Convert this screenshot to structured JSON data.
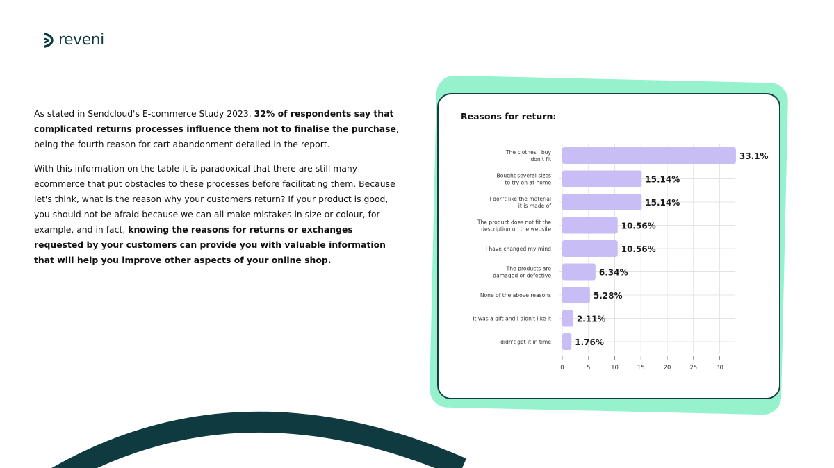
{
  "brand": {
    "name": "reveni",
    "logo_icon": "reveni-chevron-icon",
    "color": "#0e3a40"
  },
  "article": {
    "p1": {
      "pre": "As stated in ",
      "link": "Sendcloud's E-commerce Study 2023",
      "mid": ", ",
      "bold": "32% of respondents say that complicated returns processes influence them not to finalise the purchase",
      "post": ", being the fourth reason for cart abandonment detailed in the report."
    },
    "p2": {
      "text": "With this information on the table it is paradoxical that there are still many ecommerce that put obstacles to these processes before facilitating them. Because let's think, what is the reason why your customers return? If your product is good, you should not be afraid because we can all make mistakes in size or colour, for example, and in fact, ",
      "bold": "knowing the reasons for returns or exchanges requested by your customers can provide you with valuable information that will help you improve other aspects of your online shop."
    }
  },
  "chart_data": {
    "type": "bar",
    "orientation": "horizontal",
    "title": "Reasons for return:",
    "categories": [
      [
        "The clothes I buy",
        "don't fit"
      ],
      [
        "Bought several sizes",
        "to try on at home"
      ],
      [
        "I don't like the material",
        "it is made of"
      ],
      [
        "The product does not fit the",
        "description on the website"
      ],
      [
        "I have changed my mind"
      ],
      [
        "The products are",
        "damaged or defective"
      ],
      [
        "None of the above reasons"
      ],
      [
        "It was a gift and I didn't like it"
      ],
      [
        "I didn't get it in time"
      ]
    ],
    "values": [
      33.1,
      15.14,
      15.14,
      10.56,
      10.56,
      6.34,
      5.28,
      2.11,
      1.76
    ],
    "value_labels": [
      "33.1%",
      "15.14%",
      "15.14%",
      "10.56%",
      "10.56%",
      "6.34%",
      "5.28%",
      "2.11%",
      "1.76%"
    ],
    "xticks": [
      0,
      5,
      10,
      15,
      20,
      25,
      30
    ],
    "xlim": [
      0,
      33
    ],
    "grid": true,
    "bar_color": "#c9bdf5",
    "grid_color": "#e4e4e4"
  },
  "colors": {
    "accent_green": "#95f2cd",
    "dark_teal": "#0e3a40"
  }
}
